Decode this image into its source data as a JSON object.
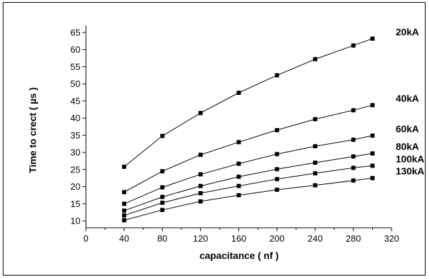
{
  "chart_data": {
    "type": "line",
    "title": "",
    "xlabel": "capacitance ( nf )",
    "ylabel": "Time to crect ( µs )",
    "xlim": [
      0,
      320
    ],
    "ylim": [
      8,
      67
    ],
    "x_ticks": [
      "0",
      "40",
      "80",
      "120",
      "160",
      "200",
      "240",
      "280",
      "320"
    ],
    "y_ticks": [
      "10",
      "15",
      "20",
      "25",
      "30",
      "35",
      "40",
      "45",
      "50",
      "55",
      "60",
      "65"
    ],
    "grid": false,
    "marker": "square",
    "series": [
      {
        "name": "20kA",
        "x": [
          40,
          80,
          120,
          160,
          200,
          240,
          280,
          300
        ],
        "values": [
          25.8,
          34.8,
          41.5,
          47.4,
          52.5,
          57.2,
          61.2,
          63.2
        ]
      },
      {
        "name": "40kA",
        "x": [
          40,
          80,
          120,
          160,
          200,
          240,
          280,
          300
        ],
        "values": [
          18.4,
          24.5,
          29.3,
          33.0,
          36.5,
          39.7,
          42.3,
          43.8
        ]
      },
      {
        "name": "60kA",
        "x": [
          40,
          80,
          120,
          160,
          200,
          240,
          280,
          300
        ],
        "values": [
          15.0,
          19.8,
          23.6,
          26.7,
          29.5,
          31.8,
          33.7,
          34.9
        ]
      },
      {
        "name": "80kA",
        "x": [
          40,
          80,
          120,
          160,
          200,
          240,
          280,
          300
        ],
        "values": [
          13.0,
          17.0,
          20.2,
          22.9,
          25.1,
          27.0,
          28.8,
          29.7
        ]
      },
      {
        "name": "100kA",
        "x": [
          40,
          80,
          120,
          160,
          200,
          240,
          280,
          300
        ],
        "values": [
          11.6,
          15.3,
          18.1,
          20.2,
          22.2,
          23.9,
          25.5,
          26.1
        ]
      },
      {
        "name": "130kA",
        "x": [
          40,
          80,
          120,
          160,
          200,
          240,
          280,
          300
        ],
        "values": [
          10.2,
          13.2,
          15.7,
          17.5,
          19.1,
          20.4,
          21.8,
          22.5
        ]
      }
    ]
  }
}
